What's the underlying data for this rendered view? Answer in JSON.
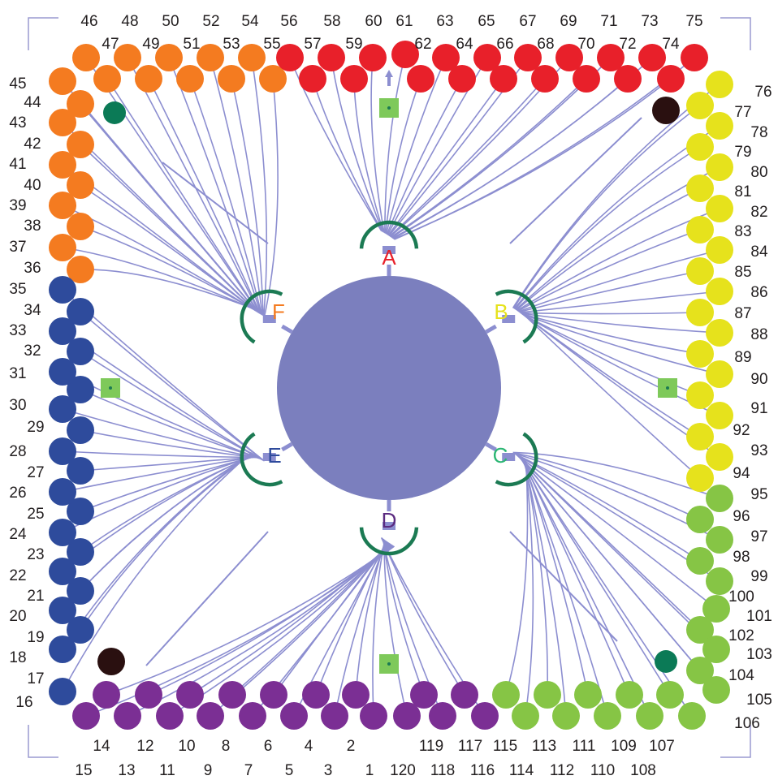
{
  "colors": {
    "background": "#ffffff",
    "trace": "#8c8ed0",
    "chamber": "#7b7fbe",
    "arc": "#1b7a53",
    "marker": "#7ec95a",
    "corner": "#9a9ad0",
    "pad_orange": "#f47b20",
    "pad_red": "#e8202a",
    "pad_yellow": "#e6e21c",
    "pad_green": "#86c545",
    "pad_purple": "#7b2f94",
    "pad_blue": "#2e4b9c",
    "pad_darkgreen": "#0b7a56",
    "pad_darkbrown": "#2a1010",
    "label": "#231f20"
  },
  "chamber_labels": [
    {
      "letter": "A",
      "color": "#e8202a"
    },
    {
      "letter": "B",
      "color": "#e6e21c"
    },
    {
      "letter": "C",
      "color": "#2bb673"
    },
    {
      "letter": "D",
      "color": "#5b2a80"
    },
    {
      "letter": "E",
      "color": "#2e4b9c"
    },
    {
      "letter": "F",
      "color": "#f47b20"
    }
  ],
  "pad_groups": [
    {
      "name": "orange",
      "numbers": [
        "36",
        "37",
        "38",
        "39",
        "40",
        "41",
        "42",
        "43",
        "44",
        "45",
        "46",
        "47",
        "48",
        "49",
        "50",
        "51",
        "52",
        "53",
        "54",
        "55"
      ]
    },
    {
      "name": "red",
      "numbers": [
        "56",
        "57",
        "58",
        "59",
        "60",
        "61",
        "62",
        "63",
        "64",
        "65",
        "66",
        "67",
        "68",
        "69",
        "70",
        "71",
        "72",
        "73",
        "74",
        "75"
      ]
    },
    {
      "name": "yellow",
      "numbers": [
        "76",
        "77",
        "78",
        "79",
        "80",
        "81",
        "82",
        "83",
        "84",
        "85",
        "86",
        "87",
        "88",
        "89",
        "90",
        "91",
        "92",
        "93",
        "94",
        "95"
      ]
    },
    {
      "name": "green",
      "numbers": [
        "96",
        "97",
        "98",
        "99",
        "100",
        "101",
        "102",
        "103",
        "104",
        "105",
        "106",
        "107",
        "108",
        "109",
        "110",
        "111",
        "112",
        "113",
        "114",
        "115"
      ]
    },
    {
      "name": "purple",
      "numbers": [
        "116",
        "117",
        "118",
        "119",
        "120",
        "1",
        "2",
        "3",
        "4",
        "5",
        "6",
        "7",
        "8",
        "9",
        "10",
        "11",
        "12",
        "13",
        "14",
        "15"
      ]
    },
    {
      "name": "blue",
      "numbers": [
        "16",
        "17",
        "18",
        "19",
        "20",
        "21",
        "22",
        "23",
        "24",
        "25",
        "26",
        "27",
        "28",
        "29",
        "30",
        "31",
        "32",
        "33",
        "34",
        "35"
      ]
    }
  ]
}
